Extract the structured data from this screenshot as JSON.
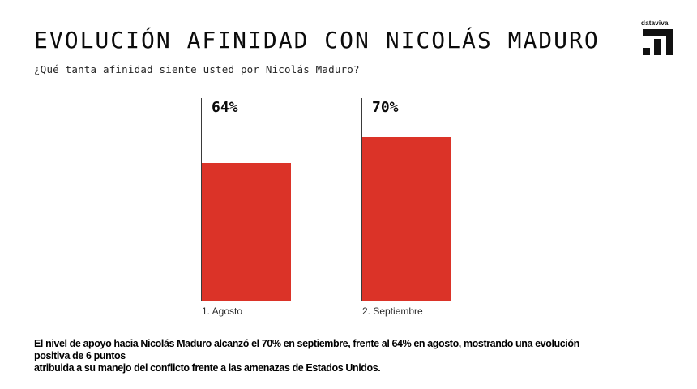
{
  "header": {
    "title": "EVOLUCIÓN AFINIDAD CON NICOLÁS MADURO",
    "subtitle": "¿Qué tanta afinidad siente usted por Nicolás Maduro?"
  },
  "logo": {
    "brand": "dataviva",
    "icon": "dataviva-mark"
  },
  "chart_data": {
    "type": "bar",
    "title": "EVOLUCIÓN AFINIDAD CON NICOLÁS MADURO",
    "question": "¿Qué tanta afinidad siente usted por Nicolás Maduro?",
    "categories": [
      "1. Agosto",
      "2. Septiembre"
    ],
    "values": [
      64,
      70
    ],
    "value_labels": [
      "64%",
      "70%"
    ],
    "bar_color": "#db3328",
    "axis_line_color": "#3a3a3a",
    "ylim": [
      32,
      79
    ],
    "grid": false,
    "legend": false
  },
  "footer": {
    "line1": "El nivel de apoyo hacia Nicolás Maduro alcanzó el 70% en septiembre, frente al 64% en agosto, mostrando una evolución positiva de 6 puntos",
    "line2": "atribuida a su manejo del conflicto frente a las amenazas de Estados Unidos."
  },
  "colors": {
    "background": "#ffffff",
    "accent_red": "#db3328",
    "text": "#0b0b0b"
  }
}
